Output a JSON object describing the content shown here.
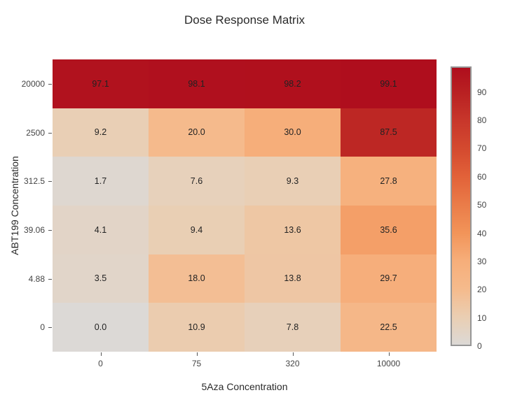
{
  "figure": {
    "background": "#ffffff"
  },
  "chart_data": {
    "type": "heatmap",
    "title": "Dose Response Matrix",
    "xlabel": "5Aza Concentration",
    "ylabel": "ABT199 Concentration",
    "x_categories": [
      "0",
      "75",
      "320",
      "10000"
    ],
    "y_categories": [
      "20000",
      "2500",
      "312.5",
      "39.06",
      "4.88",
      "0"
    ],
    "z": [
      [
        97.1,
        98.1,
        98.2,
        99.1
      ],
      [
        9.2,
        20.0,
        30.0,
        87.5
      ],
      [
        1.7,
        7.6,
        9.3,
        27.8
      ],
      [
        4.1,
        9.4,
        13.6,
        35.6
      ],
      [
        3.5,
        18.0,
        13.8,
        29.7
      ],
      [
        0.0,
        10.9,
        7.8,
        22.5
      ]
    ],
    "zmin": 0,
    "zmax": 99.1,
    "value_decimals": 1,
    "grid": false,
    "legend_position": "none",
    "colorbar": {
      "ticks": [
        0,
        10,
        20,
        30,
        40,
        50,
        60,
        70,
        80,
        90
      ],
      "border_color": "#969696"
    },
    "colorscale": [
      [
        0,
        "#dcd9d6"
      ],
      [
        10,
        "#eaceb2"
      ],
      [
        20,
        "#f5ba8c"
      ],
      [
        30,
        "#f6ae7a"
      ],
      [
        40,
        "#f29459"
      ],
      [
        50,
        "#ea7c49"
      ],
      [
        60,
        "#e26239"
      ],
      [
        70,
        "#d44a2f"
      ],
      [
        80,
        "#c8372b"
      ],
      [
        90,
        "#b92122"
      ],
      [
        99.1,
        "#af0e1d"
      ]
    ],
    "cell_text_color": "#222222",
    "axis_text_color": "#444444",
    "title_text_color": "#2a2a2a"
  }
}
